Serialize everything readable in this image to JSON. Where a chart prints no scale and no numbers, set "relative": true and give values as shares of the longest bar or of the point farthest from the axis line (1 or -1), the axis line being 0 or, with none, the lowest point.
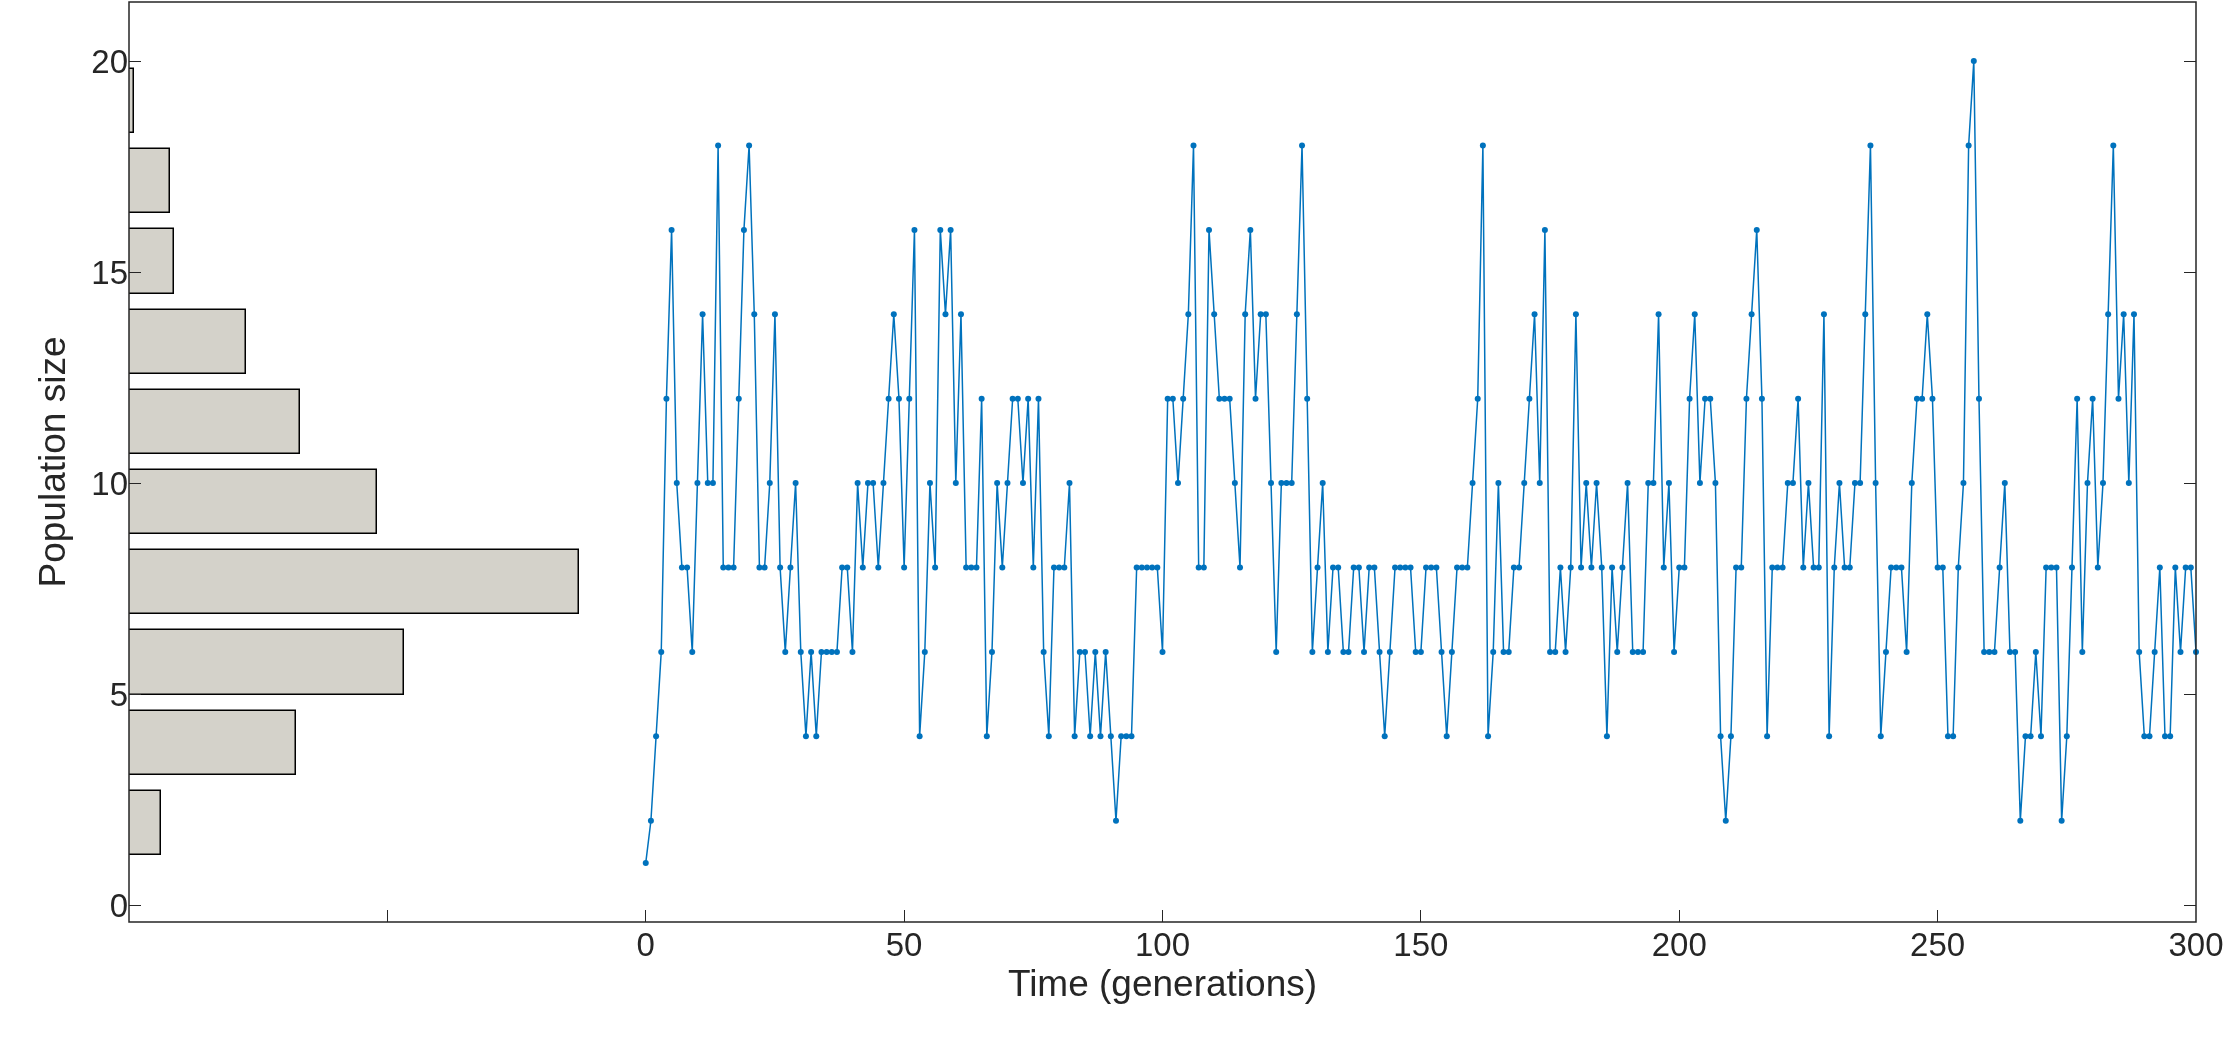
{
  "chart_data": [
    {
      "type": "bar",
      "orientation": "horizontal",
      "relative": true,
      "ylabel": "Population size",
      "color": "#d4d2ca",
      "x": [
        1.95,
        3.85,
        5.75,
        7.65,
        9.55,
        11.45,
        13.35,
        15.25,
        17.15,
        19.05
      ],
      "values": [
        0.07,
        0.37,
        0.61,
        1,
        0.55,
        0.38,
        0.26,
        0.1,
        0.09,
        0.011
      ],
      "ylim": [
        -0.4,
        21.4
      ],
      "yticks": [
        0,
        5,
        10,
        15,
        20
      ],
      "tick_labels": "y"
    },
    {
      "type": "line",
      "xlabel": "Time (generations)",
      "xlim": [
        -100,
        300
      ],
      "xticks": [
        {
          "value": -50,
          "label": null
        },
        0,
        50,
        100,
        150,
        200,
        250,
        300
      ],
      "ylim": [
        -0.4,
        21.4
      ],
      "yticks": [
        0,
        5,
        10,
        15,
        20
      ],
      "tick_labels": "x",
      "marker": "circle",
      "line_style": "solid",
      "x": [
        0,
        1,
        2,
        3,
        4,
        5,
        6,
        7,
        8,
        9,
        10,
        11,
        12,
        13,
        14,
        15,
        16,
        17,
        18,
        19,
        20,
        21,
        22,
        23,
        24,
        25,
        26,
        27,
        28,
        29,
        30,
        31,
        32,
        33,
        34,
        35,
        36,
        37,
        38,
        39,
        40,
        41,
        42,
        43,
        44,
        45,
        46,
        47,
        48,
        49,
        50,
        51,
        52,
        53,
        54,
        55,
        56,
        57,
        58,
        59,
        60,
        61,
        62,
        63,
        64,
        65,
        66,
        67,
        68,
        69,
        70,
        71,
        72,
        73,
        74,
        75,
        76,
        77,
        78,
        79,
        80,
        81,
        82,
        83,
        84,
        85,
        86,
        87,
        88,
        89,
        90,
        91,
        92,
        93,
        94,
        95,
        96,
        97,
        98,
        99,
        100,
        101,
        102,
        103,
        104,
        105,
        106,
        107,
        108,
        109,
        110,
        111,
        112,
        113,
        114,
        115,
        116,
        117,
        118,
        119,
        120,
        121,
        122,
        123,
        124,
        125,
        126,
        127,
        128,
        129,
        130,
        131,
        132,
        133,
        134,
        135,
        136,
        137,
        138,
        139,
        140,
        141,
        142,
        143,
        144,
        145,
        146,
        147,
        148,
        149,
        150,
        151,
        152,
        153,
        154,
        155,
        156,
        157,
        158,
        159,
        160,
        161,
        162,
        163,
        164,
        165,
        166,
        167,
        168,
        169,
        170,
        171,
        172,
        173,
        174,
        175,
        176,
        177,
        178,
        179,
        180,
        181,
        182,
        183,
        184,
        185,
        186,
        187,
        188,
        189,
        190,
        191,
        192,
        193,
        194,
        195,
        196,
        197,
        198,
        199,
        200,
        201,
        202,
        203,
        204,
        205,
        206,
        207,
        208,
        209,
        210,
        211,
        212,
        213,
        214,
        215,
        216,
        217,
        218,
        219,
        220,
        221,
        222,
        223,
        224,
        225,
        226,
        227,
        228,
        229,
        230,
        231,
        232,
        233,
        234,
        235,
        236,
        237,
        238,
        239,
        240,
        241,
        242,
        243,
        244,
        245,
        246,
        247,
        248,
        249,
        250,
        251,
        252,
        253,
        254,
        255,
        256,
        257,
        258,
        259,
        260,
        261,
        262,
        263,
        264,
        265,
        266,
        267,
        268,
        269,
        270,
        271,
        272,
        273,
        274,
        275,
        276,
        277,
        278,
        279,
        280,
        281,
        282,
        283,
        284,
        285,
        286,
        287,
        288,
        289,
        290,
        291,
        292,
        293,
        294,
        295,
        296,
        297,
        298,
        299,
        300
      ],
      "series": [
        {
          "color": "#0072bd",
          "values": [
            1,
            2,
            4,
            6,
            12,
            16,
            10,
            8,
            8,
            6,
            10,
            14,
            10,
            10,
            18,
            8,
            8,
            8,
            12,
            16,
            18,
            14,
            8,
            8,
            10,
            14,
            8,
            6,
            8,
            10,
            6,
            4,
            6,
            4,
            6,
            6,
            6,
            6,
            8,
            8,
            6,
            10,
            8,
            10,
            10,
            8,
            10,
            12,
            14,
            12,
            8,
            12,
            16,
            4,
            6,
            10,
            8,
            16,
            14,
            16,
            10,
            14,
            8,
            8,
            8,
            12,
            4,
            6,
            10,
            8,
            10,
            12,
            12,
            10,
            12,
            8,
            12,
            6,
            4,
            8,
            8,
            8,
            10,
            4,
            6,
            6,
            4,
            6,
            4,
            6,
            4,
            2,
            4,
            4,
            4,
            8,
            8,
            8,
            8,
            8,
            6,
            12,
            12,
            10,
            12,
            14,
            18,
            8,
            8,
            16,
            14,
            12,
            12,
            12,
            10,
            8,
            14,
            16,
            12,
            14,
            14,
            10,
            6,
            10,
            10,
            10,
            14,
            18,
            12,
            6,
            8,
            10,
            6,
            8,
            8,
            6,
            6,
            8,
            8,
            6,
            8,
            8,
            6,
            4,
            6,
            8,
            8,
            8,
            8,
            6,
            6,
            8,
            8,
            8,
            6,
            4,
            6,
            8,
            8,
            8,
            10,
            12,
            18,
            4,
            6,
            10,
            6,
            6,
            8,
            8,
            10,
            12,
            14,
            10,
            16,
            6,
            6,
            8,
            6,
            8,
            14,
            8,
            10,
            8,
            10,
            8,
            4,
            8,
            6,
            8,
            10,
            6,
            6,
            6,
            10,
            10,
            14,
            8,
            10,
            6,
            8,
            8,
            12,
            14,
            10,
            12,
            12,
            10,
            4,
            2,
            4,
            8,
            8,
            12,
            14,
            16,
            12,
            4,
            8,
            8,
            8,
            10,
            10,
            12,
            8,
            10,
            8,
            8,
            14,
            4,
            8,
            10,
            8,
            8,
            10,
            10,
            14,
            18,
            10,
            4,
            6,
            8,
            8,
            8,
            6,
            10,
            12,
            12,
            14,
            12,
            8,
            8,
            4,
            4,
            8,
            10,
            18,
            20,
            12,
            6,
            6,
            6,
            8,
            10,
            6,
            6,
            2,
            4,
            4,
            6,
            4,
            8,
            8,
            8,
            2,
            4,
            8,
            12,
            6,
            10,
            12,
            8,
            10,
            14,
            18,
            12,
            14,
            10,
            14,
            6,
            4,
            4,
            6,
            8,
            4,
            4,
            8,
            6,
            8,
            8,
            6
          ]
        }
      ]
    }
  ]
}
